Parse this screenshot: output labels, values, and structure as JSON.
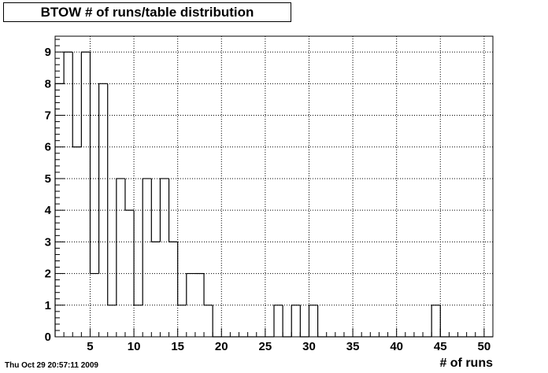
{
  "chart_data": {
    "type": "bar",
    "title": "BTOW # of runs/table distribution",
    "xlabel": "# of runs",
    "ylabel": "",
    "x_bin_edges": [
      1,
      2,
      3,
      4,
      5,
      6,
      7,
      8,
      9,
      10,
      11,
      12,
      13,
      14,
      15,
      16,
      17,
      18,
      19,
      20,
      21,
      22,
      23,
      24,
      25,
      26,
      27,
      28,
      29,
      30,
      31,
      32,
      33,
      34,
      35,
      36,
      37,
      38,
      39,
      40,
      41,
      42,
      43,
      44,
      45,
      46,
      47,
      48,
      49,
      50,
      51
    ],
    "values": [
      8,
      9,
      6,
      9,
      2,
      8,
      1,
      5,
      4,
      1,
      5,
      3,
      5,
      3,
      1,
      2,
      2,
      1,
      0,
      0,
      0,
      0,
      0,
      0,
      0,
      1,
      0,
      1,
      0,
      1,
      0,
      0,
      0,
      0,
      0,
      0,
      0,
      0,
      0,
      0,
      0,
      0,
      0,
      1,
      0,
      0,
      0,
      0,
      0,
      0
    ],
    "xlim": [
      1,
      51
    ],
    "ylim": [
      0,
      9.5
    ],
    "xticks": [
      "5",
      "10",
      "15",
      "20",
      "25",
      "30",
      "35",
      "40",
      "45",
      "50"
    ],
    "xtick_values": [
      5,
      10,
      15,
      20,
      25,
      30,
      35,
      40,
      45,
      50
    ],
    "yticks": [
      "0",
      "1",
      "2",
      "3",
      "4",
      "5",
      "6",
      "7",
      "8",
      "9"
    ],
    "ytick_values": [
      0,
      1,
      2,
      3,
      4,
      5,
      6,
      7,
      8,
      9
    ],
    "grid": true,
    "legend": "none",
    "colors": {
      "line": "#000000",
      "background": "#ffffff",
      "grid": "#000000"
    }
  },
  "footer": {
    "timestamp": "Thu Oct 29 20:57:11 2009"
  }
}
